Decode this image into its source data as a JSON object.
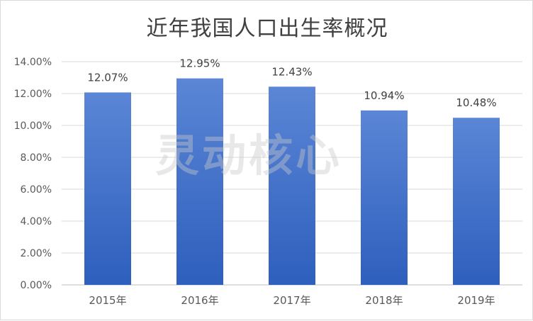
{
  "chart_data": {
    "type": "bar",
    "title": "近年我国人口出生率概况",
    "categories": [
      "2015年",
      "2016年",
      "2017年",
      "2018年",
      "2019年"
    ],
    "values": [
      12.07,
      12.95,
      12.43,
      10.94,
      10.48
    ],
    "value_labels": [
      "12.07%",
      "12.95%",
      "12.43%",
      "10.94%",
      "10.48%"
    ],
    "y_ticks": [
      0,
      2,
      4,
      6,
      8,
      10,
      12,
      14
    ],
    "y_tick_labels": [
      "0.00%",
      "2.00%",
      "4.00%",
      "6.00%",
      "8.00%",
      "10.00%",
      "12.00%",
      "14.00%"
    ],
    "ylim": [
      0,
      14
    ],
    "xlabel": "",
    "ylabel": "",
    "grid": true,
    "legend": "none",
    "bar_color_top": "#5b86d6",
    "bar_color_bottom": "#2e5fbd"
  },
  "watermark": "灵动核心"
}
